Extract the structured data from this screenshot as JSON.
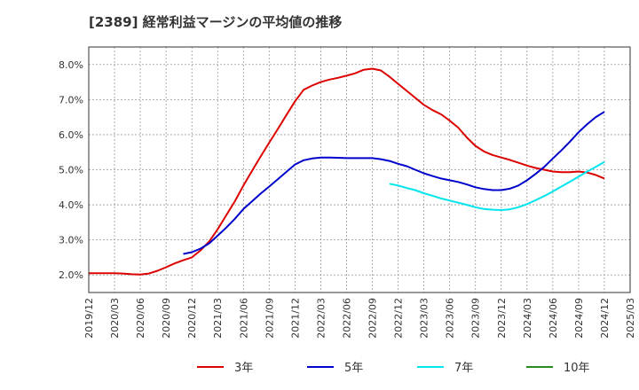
{
  "title": "[2389]  経常利益マージンの平均値の推移",
  "chart_data": {
    "type": "line",
    "title": "[2389]  経常利益マージンの平均値の推移",
    "xlabel": "",
    "ylabel": "",
    "ylim": [
      1.5,
      8.5
    ],
    "yticks": [
      "2.0%",
      "3.0%",
      "4.0%",
      "5.0%",
      "6.0%",
      "7.0%",
      "8.0%"
    ],
    "yticks_values": [
      2.0,
      3.0,
      4.0,
      5.0,
      6.0,
      7.0,
      8.0
    ],
    "xticks": [
      "2019/12",
      "2020/03",
      "2020/06",
      "2020/09",
      "2020/12",
      "2021/03",
      "2021/06",
      "2021/09",
      "2021/12",
      "2022/03",
      "2022/06",
      "2022/09",
      "2022/12",
      "2023/03",
      "2023/06",
      "2023/09",
      "2023/12",
      "2024/03",
      "2024/06",
      "2024/09",
      "2024/12",
      "2025/03"
    ],
    "grid": true,
    "legend_position": "bottom",
    "series": [
      {
        "name": "3年",
        "color": "#dd0000",
        "x": [
          "2019/12",
          "2020/01",
          "2020/02",
          "2020/03",
          "2020/04",
          "2020/05",
          "2020/06",
          "2020/07",
          "2020/08",
          "2020/09",
          "2020/10",
          "2020/11",
          "2020/12",
          "2021/01",
          "2021/02",
          "2021/03",
          "2021/04",
          "2021/05",
          "2021/06",
          "2021/07",
          "2021/08",
          "2021/09",
          "2021/10",
          "2021/11",
          "2021/12",
          "2022/01",
          "2022/02",
          "2022/03",
          "2022/04",
          "2022/05",
          "2022/06",
          "2022/07",
          "2022/08",
          "2022/09",
          "2022/10",
          "2022/11",
          "2022/12",
          "2023/01",
          "2023/02",
          "2023/03",
          "2023/04",
          "2023/05",
          "2023/06",
          "2023/07",
          "2023/08",
          "2023/09",
          "2023/10",
          "2023/11",
          "2023/12",
          "2024/01",
          "2024/02",
          "2024/03",
          "2024/04",
          "2024/05",
          "2024/06",
          "2024/07",
          "2024/08",
          "2024/09",
          "2024/10",
          "2024/11",
          "2024/12"
        ],
        "values": [
          2.05,
          2.05,
          2.05,
          2.05,
          2.04,
          2.02,
          2.01,
          2.04,
          2.12,
          2.22,
          2.33,
          2.42,
          2.5,
          2.7,
          2.95,
          3.3,
          3.7,
          4.1,
          4.55,
          4.97,
          5.38,
          5.77,
          6.16,
          6.56,
          6.95,
          7.28,
          7.4,
          7.5,
          7.57,
          7.62,
          7.68,
          7.75,
          7.85,
          7.88,
          7.83,
          7.65,
          7.45,
          7.25,
          7.05,
          6.85,
          6.7,
          6.58,
          6.4,
          6.2,
          5.92,
          5.68,
          5.52,
          5.42,
          5.35,
          5.28,
          5.2,
          5.12,
          5.05,
          5.0,
          4.95,
          4.93,
          4.93,
          4.95,
          4.92,
          4.85,
          4.75
        ]
      },
      {
        "name": "5年",
        "color": "#0000cc",
        "x": [
          "2020/11",
          "2020/12",
          "2021/01",
          "2021/02",
          "2021/03",
          "2021/04",
          "2021/05",
          "2021/06",
          "2021/07",
          "2021/08",
          "2021/09",
          "2021/10",
          "2021/11",
          "2021/12",
          "2022/01",
          "2022/02",
          "2022/03",
          "2022/04",
          "2022/05",
          "2022/06",
          "2022/07",
          "2022/08",
          "2022/09",
          "2022/10",
          "2022/11",
          "2022/12",
          "2023/01",
          "2023/02",
          "2023/03",
          "2023/04",
          "2023/05",
          "2023/06",
          "2023/07",
          "2023/08",
          "2023/09",
          "2023/10",
          "2023/11",
          "2023/12",
          "2024/01",
          "2024/02",
          "2024/03",
          "2024/04",
          "2024/05",
          "2024/06",
          "2024/07",
          "2024/08",
          "2024/09",
          "2024/10",
          "2024/11",
          "2024/12"
        ],
        "values": [
          2.6,
          2.65,
          2.75,
          2.9,
          3.12,
          3.35,
          3.6,
          3.88,
          4.1,
          4.32,
          4.52,
          4.73,
          4.94,
          5.15,
          5.27,
          5.32,
          5.35,
          5.35,
          5.34,
          5.33,
          5.33,
          5.33,
          5.33,
          5.3,
          5.25,
          5.17,
          5.1,
          5.0,
          4.9,
          4.82,
          4.75,
          4.7,
          4.65,
          4.58,
          4.5,
          4.45,
          4.42,
          4.42,
          4.46,
          4.55,
          4.7,
          4.88,
          5.08,
          5.32,
          5.55,
          5.8,
          6.07,
          6.3,
          6.5,
          6.65
        ]
      },
      {
        "name": "7年",
        "color": "#00e5ee",
        "x": [
          "2022/11",
          "2022/12",
          "2023/01",
          "2023/02",
          "2023/03",
          "2023/04",
          "2023/05",
          "2023/06",
          "2023/07",
          "2023/08",
          "2023/09",
          "2023/10",
          "2023/11",
          "2023/12",
          "2024/01",
          "2024/02",
          "2024/03",
          "2024/04",
          "2024/05",
          "2024/06",
          "2024/07",
          "2024/08",
          "2024/09",
          "2024/10",
          "2024/11",
          "2024/12"
        ],
        "values": [
          4.6,
          4.55,
          4.48,
          4.42,
          4.33,
          4.26,
          4.18,
          4.12,
          4.06,
          4.0,
          3.93,
          3.88,
          3.86,
          3.85,
          3.87,
          3.93,
          4.02,
          4.13,
          4.25,
          4.38,
          4.52,
          4.66,
          4.8,
          4.95,
          5.08,
          5.22
        ]
      },
      {
        "name": "10年",
        "color": "#228b22",
        "x": [],
        "values": []
      }
    ]
  }
}
